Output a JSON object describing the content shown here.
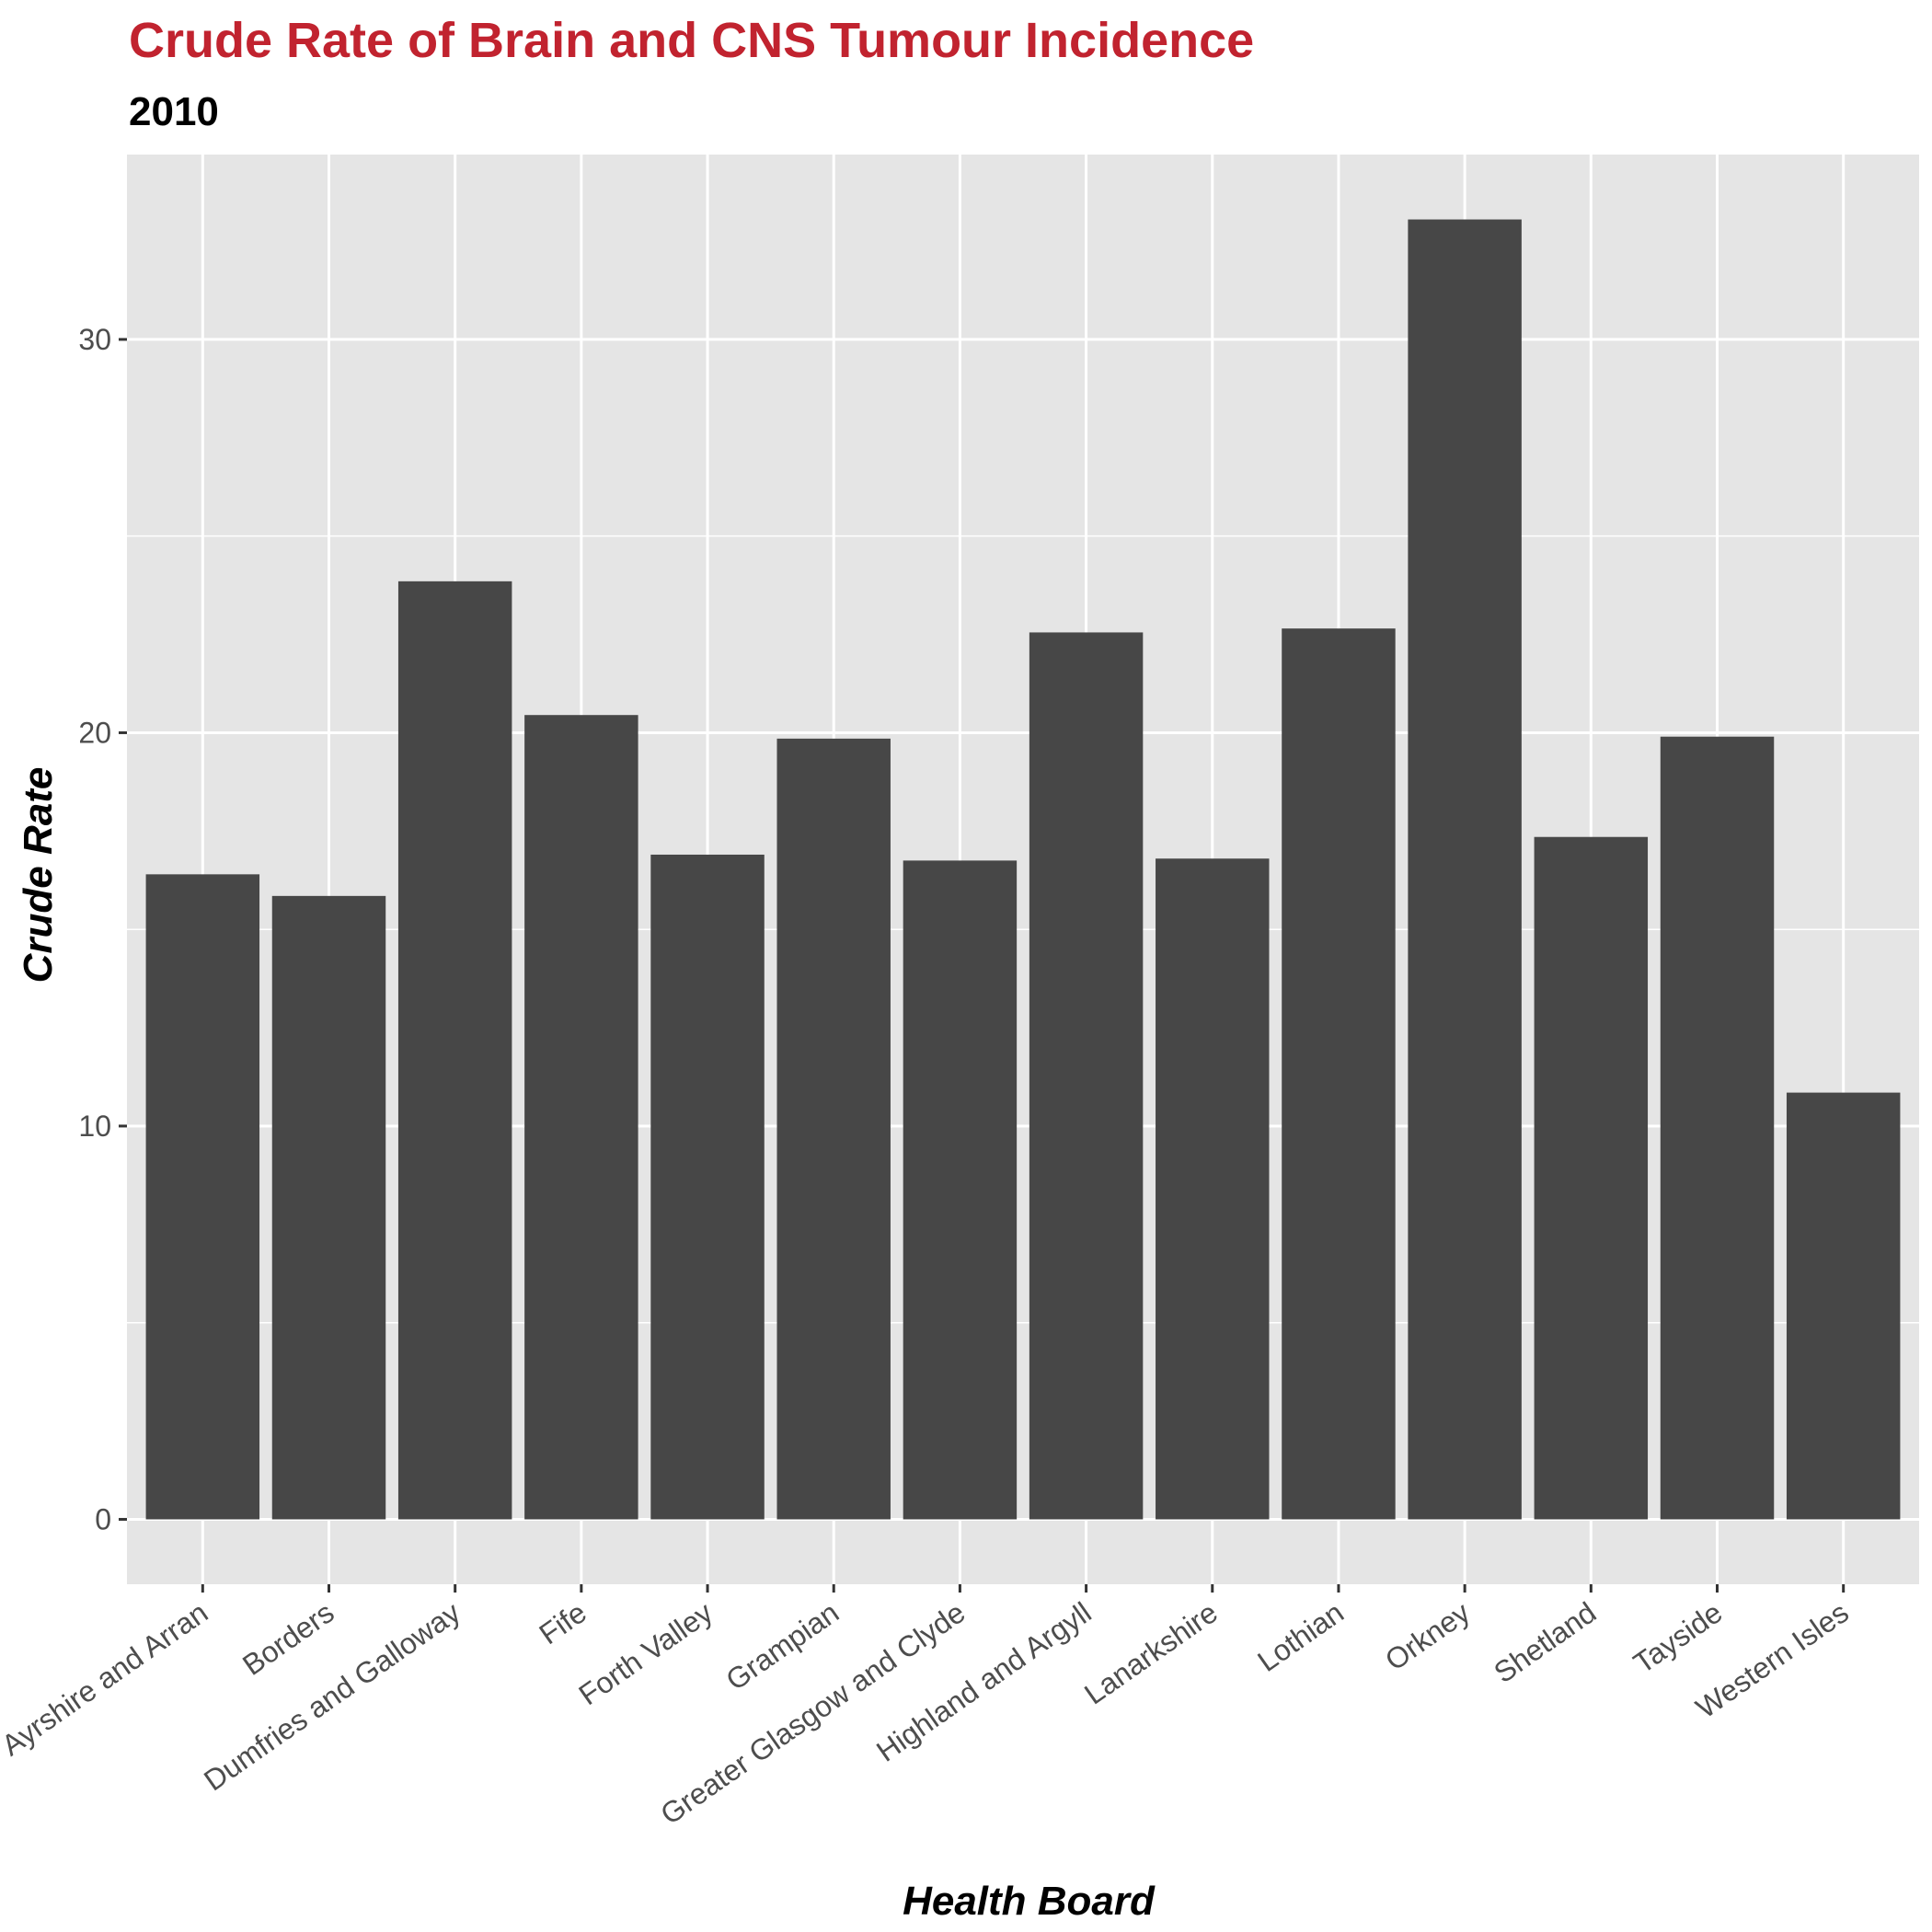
{
  "chart_data": {
    "type": "bar",
    "title": "Crude Rate of Brain and CNS Tumour Incidence",
    "subtitle": "2010",
    "xlabel": "Health Board",
    "ylabel": "Crude Rate",
    "categories": [
      "Ayrshire and Arran",
      "Borders",
      "Dumfries and Galloway",
      "Fife",
      "Forth Valley",
      "Grampian",
      "Greater Glasgow and Clyde",
      "Highland and Argyll",
      "Lanarkshire",
      "Lothian",
      "Orkney",
      "Shetland",
      "Tayside",
      "Western Isles"
    ],
    "values": [
      16.4,
      15.85,
      23.85,
      20.45,
      16.9,
      19.85,
      16.75,
      22.55,
      16.8,
      22.65,
      33.05,
      17.35,
      19.9,
      10.85
    ],
    "ylim": [
      -1.65,
      34.7
    ],
    "yticks": [
      0,
      10,
      20,
      30
    ],
    "grid": true,
    "legend": "none",
    "colors": {
      "title": "#c1232f",
      "bar": "#474747",
      "panel": "#e5e5e5",
      "grid": "#ffffff",
      "tick_text": "#4d4d4d",
      "tick_mark": "#333333"
    }
  }
}
